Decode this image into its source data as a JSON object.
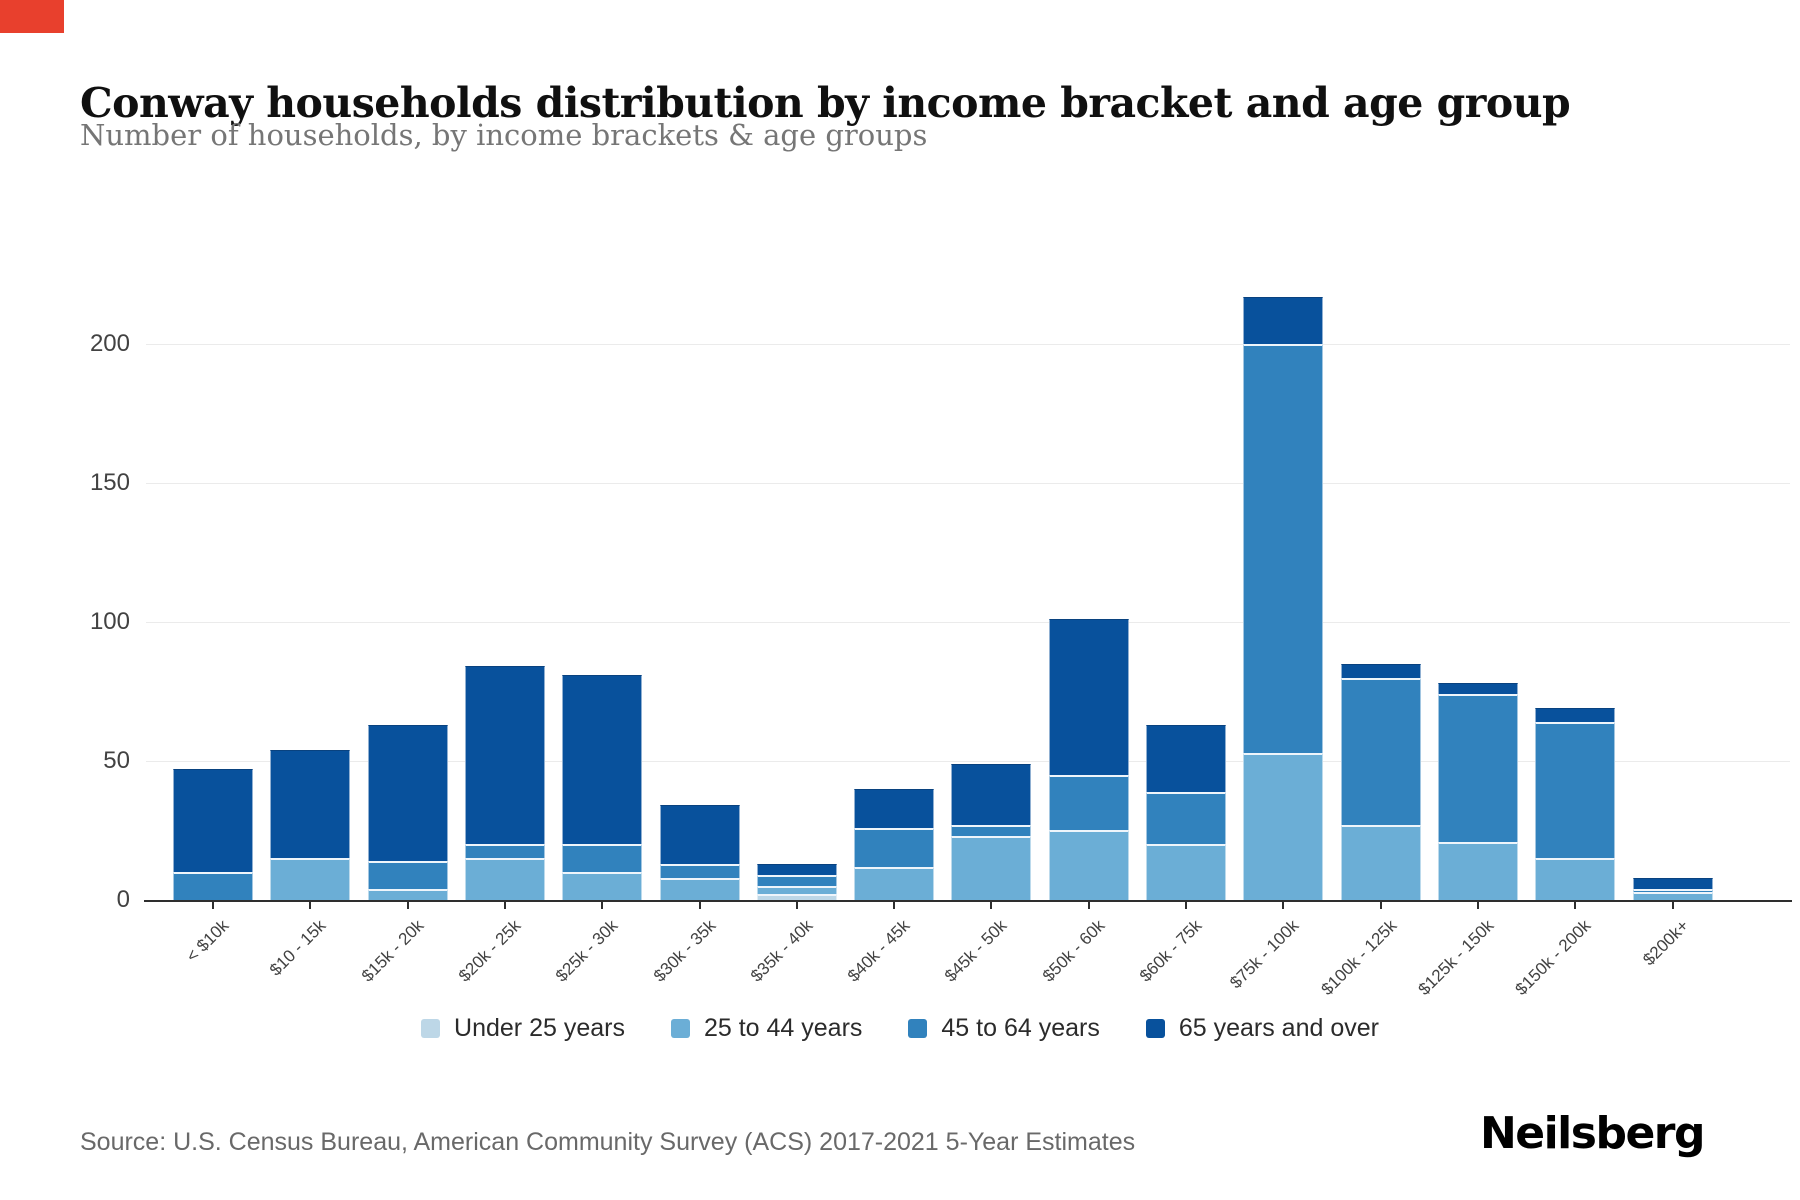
{
  "page": {
    "title": "Conway households distribution by income bracket and age group",
    "subtitle": "Number of households, by income brackets & age groups",
    "source": "Source: U.S. Census Bureau, American Community Survey (ACS) 2017-2021 5-Year Estimates",
    "brand": "Neilsberg",
    "accent_color": "#e8402d"
  },
  "chart_data": {
    "type": "bar",
    "stacked": true,
    "title": "Conway households distribution by income bracket and age group",
    "subtitle": "Number of households, by income brackets & age groups",
    "xlabel": "",
    "ylabel": "Number of households",
    "categories": [
      "< $10k",
      "$10 - 15k",
      "$15k - 20k",
      "$20k - 25k",
      "$25k - 30k",
      "$30k - 35k",
      "$35k - 40k",
      "$40k - 45k",
      "$45k - 50k",
      "$50k - 60k",
      "$60k - 75k",
      "$75k - 100k",
      "$100k - 125k",
      "$125k - 150k",
      "$150k - 200k",
      "$200k+"
    ],
    "series": [
      {
        "name": "Under 25 years",
        "color": "#bdd7e7",
        "values": [
          0,
          0,
          0,
          0,
          0,
          0,
          2,
          0,
          0,
          0,
          0,
          0,
          0,
          0,
          0,
          0
        ]
      },
      {
        "name": "25 to 44 years",
        "color": "#6baed6",
        "values": [
          0,
          15,
          4,
          15,
          10,
          8,
          3,
          12,
          23,
          25,
          20,
          53,
          27,
          21,
          15,
          3
        ]
      },
      {
        "name": "45 to 64 years",
        "color": "#3182bd",
        "values": [
          10,
          0,
          10,
          5,
          10,
          5,
          4,
          14,
          4,
          20,
          19,
          147,
          53,
          53,
          49,
          1
        ]
      },
      {
        "name": "65 years and over",
        "color": "#08519c",
        "values": [
          37,
          39,
          49,
          64,
          61,
          21,
          4,
          14,
          22,
          56,
          24,
          17,
          5,
          4,
          5,
          4
        ]
      }
    ],
    "totals": [
      47,
      54,
      63,
      84,
      81,
      34,
      13,
      40,
      49,
      101,
      63,
      217,
      85,
      78,
      69,
      8
    ],
    "yticks": [
      0,
      50,
      100,
      150,
      200
    ],
    "ylim": [
      0,
      225
    ],
    "grid": true,
    "legend_position": "bottom"
  }
}
